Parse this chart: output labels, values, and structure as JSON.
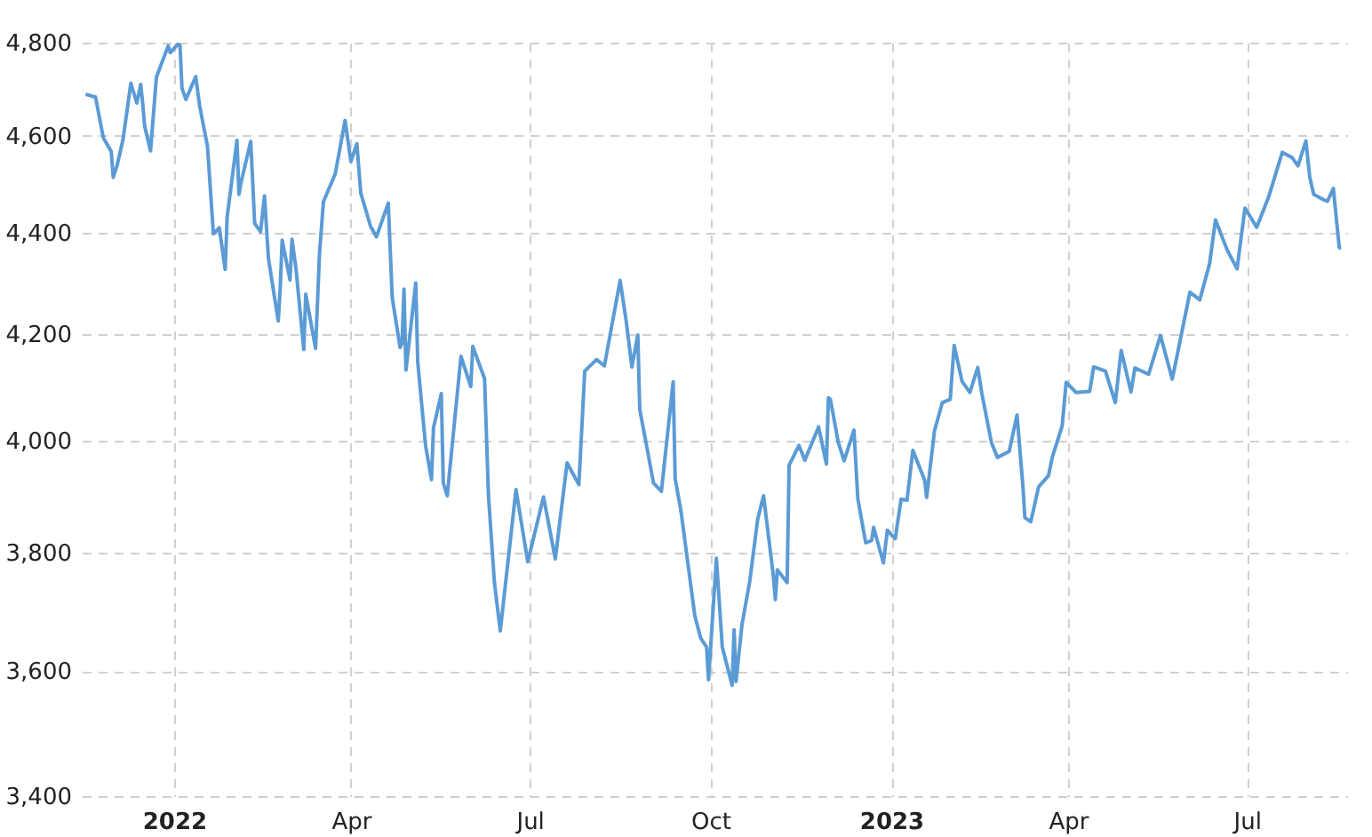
{
  "chart_data": {
    "type": "line",
    "log": true,
    "grid": true,
    "marker": "none",
    "line_style": "solid",
    "xlim": [
      "2021-11-15",
      "2023-08-21"
    ],
    "xticks": [
      {
        "value": "2022-01-01",
        "label": "2022"
      },
      {
        "value": "2022-04-01",
        "label": "Apr"
      },
      {
        "value": "2022-07-01",
        "label": "Jul"
      },
      {
        "value": "2022-10-01",
        "label": "Oct"
      },
      {
        "value": "2023-01-01",
        "label": "2023"
      },
      {
        "value": "2023-04-01",
        "label": "Apr"
      },
      {
        "value": "2023-07-01",
        "label": "Jul"
      }
    ],
    "ylim": [
      3400,
      4800
    ],
    "yticks": [
      {
        "value": 3400,
        "label": "3,400"
      },
      {
        "value": 3600,
        "label": "3,600"
      },
      {
        "value": 3800,
        "label": "3,800"
      },
      {
        "value": 4000,
        "label": "4,000"
      },
      {
        "value": 4200,
        "label": "4,200"
      },
      {
        "value": 4400,
        "label": "4,400"
      },
      {
        "value": 4600,
        "label": "4,600"
      },
      {
        "value": 4800,
        "label": "4,800"
      }
    ],
    "x": [
      "2021-11-17",
      "2021-11-22",
      "2021-11-26",
      "2021-11-30",
      "2021-12-01",
      "2021-12-03",
      "2021-12-06",
      "2021-12-10",
      "2021-12-13",
      "2021-12-15",
      "2021-12-16",
      "2021-12-17",
      "2021-12-20",
      "2021-12-23",
      "2021-12-29",
      "2021-12-30",
      "2022-01-03",
      "2022-01-04",
      "2022-01-05",
      "2022-01-07",
      "2022-01-12",
      "2022-01-14",
      "2022-01-18",
      "2022-01-21",
      "2022-01-24",
      "2022-01-27",
      "2022-01-28",
      "2022-02-02",
      "2022-02-03",
      "2022-02-04",
      "2022-02-09",
      "2022-02-10",
      "2022-02-11",
      "2022-02-14",
      "2022-02-16",
      "2022-02-18",
      "2022-02-23",
      "2022-02-24",
      "2022-02-25",
      "2022-03-01",
      "2022-03-02",
      "2022-03-04",
      "2022-03-08",
      "2022-03-09",
      "2022-03-14",
      "2022-03-16",
      "2022-03-18",
      "2022-03-24",
      "2022-03-29",
      "2022-04-01",
      "2022-04-04",
      "2022-04-06",
      "2022-04-11",
      "2022-04-14",
      "2022-04-20",
      "2022-04-22",
      "2022-04-26",
      "2022-04-27",
      "2022-04-28",
      "2022-04-29",
      "2022-05-04",
      "2022-05-05",
      "2022-05-09",
      "2022-05-12",
      "2022-05-13",
      "2022-05-17",
      "2022-05-18",
      "2022-05-20",
      "2022-05-27",
      "2022-06-01",
      "2022-06-02",
      "2022-06-08",
      "2022-06-10",
      "2022-06-13",
      "2022-06-16",
      "2022-06-24",
      "2022-06-30",
      "2022-07-08",
      "2022-07-14",
      "2022-07-20",
      "2022-07-26",
      "2022-07-29",
      "2022-08-04",
      "2022-08-08",
      "2022-08-16",
      "2022-08-19",
      "2022-08-22",
      "2022-08-25",
      "2022-08-26",
      "2022-09-02",
      "2022-09-06",
      "2022-09-12",
      "2022-09-13",
      "2022-09-16",
      "2022-09-23",
      "2022-09-26",
      "2022-09-29",
      "2022-09-30",
      "2022-10-04",
      "2022-10-07",
      "2022-10-12",
      "2022-10-13",
      "2022-10-14",
      "2022-10-17",
      "2022-10-21",
      "2022-10-25",
      "2022-10-28",
      "2022-11-02",
      "2022-11-03",
      "2022-11-04",
      "2022-11-09",
      "2022-11-10",
      "2022-11-15",
      "2022-11-18",
      "2022-11-25",
      "2022-11-29",
      "2022-11-30",
      "2022-12-01",
      "2022-12-05",
      "2022-12-08",
      "2022-12-13",
      "2022-12-15",
      "2022-12-19",
      "2022-12-22",
      "2022-12-23",
      "2022-12-28",
      "2022-12-30",
      "2023-01-03",
      "2023-01-06",
      "2023-01-09",
      "2023-01-12",
      "2023-01-18",
      "2023-01-19",
      "2023-01-23",
      "2023-01-27",
      "2023-01-31",
      "2023-02-02",
      "2023-02-06",
      "2023-02-10",
      "2023-02-14",
      "2023-02-16",
      "2023-02-21",
      "2023-02-24",
      "2023-03-02",
      "2023-03-06",
      "2023-03-09",
      "2023-03-10",
      "2023-03-13",
      "2023-03-17",
      "2023-03-22",
      "2023-03-24",
      "2023-03-29",
      "2023-03-31",
      "2023-04-05",
      "2023-04-12",
      "2023-04-14",
      "2023-04-20",
      "2023-04-25",
      "2023-04-28",
      "2023-05-03",
      "2023-05-05",
      "2023-05-12",
      "2023-05-18",
      "2023-05-24",
      "2023-05-26",
      "2023-06-02",
      "2023-06-07",
      "2023-06-12",
      "2023-06-15",
      "2023-06-21",
      "2023-06-26",
      "2023-06-30",
      "2023-07-06",
      "2023-07-12",
      "2023-07-19",
      "2023-07-24",
      "2023-07-27",
      "2023-07-31",
      "2023-08-02",
      "2023-08-04",
      "2023-08-09",
      "2023-08-11",
      "2023-08-14",
      "2023-08-17",
      "2023-08-18"
    ],
    "series": [
      {
        "color": "#5b9bd5",
        "values": [
          4688,
          4682,
          4595,
          4567,
          4513,
          4538,
          4592,
          4712,
          4669,
          4709,
          4669,
          4620,
          4568,
          4725,
          4793,
          4778,
          4797,
          4794,
          4701,
          4677,
          4726,
          4663,
          4577,
          4398,
          4410,
          4327,
          4432,
          4590,
          4478,
          4501,
          4588,
          4504,
          4419,
          4402,
          4475,
          4349,
          4226,
          4289,
          4385,
          4306,
          4387,
          4329,
          4171,
          4278,
          4173,
          4358,
          4463,
          4520,
          4632,
          4546,
          4583,
          4481,
          4413,
          4392,
          4460,
          4272,
          4175,
          4183,
          4288,
          4132,
          4300,
          4147,
          3991,
          3930,
          4024,
          4088,
          3924,
          3901,
          4158,
          4101,
          4177,
          4116,
          3901,
          3750,
          3667,
          3912,
          3785,
          3899,
          3790,
          3960,
          3921,
          4130,
          4152,
          4140,
          4305,
          4228,
          4138,
          4199,
          4058,
          3924,
          3909,
          4110,
          3932,
          3873,
          3693,
          3655,
          3640,
          3586,
          3791,
          3640,
          3577,
          3669,
          3583,
          3677,
          3752,
          3859,
          3901,
          3760,
          3720,
          3771,
          3749,
          3956,
          3992,
          3965,
          4026,
          3958,
          4080,
          4077,
          3998,
          3964,
          4020,
          3895,
          3818,
          3822,
          3845,
          3783,
          3840,
          3825,
          3895,
          3893,
          3983,
          3929,
          3898,
          4019,
          4071,
          4077,
          4179,
          4111,
          4090,
          4137,
          4090,
          3997,
          3970,
          3981,
          4048,
          3918,
          3862,
          3855,
          3917,
          3937,
          3971,
          4028,
          4109,
          4090,
          4092,
          4138,
          4130,
          4071,
          4169,
          4091,
          4136,
          4124,
          4198,
          4115,
          4151,
          4282,
          4267,
          4338,
          4426,
          4365,
          4328,
          4450,
          4411,
          4472,
          4565,
          4554,
          4537,
          4589,
          4513,
          4478,
          4467,
          4464,
          4490,
          4370,
          4370
        ]
      }
    ]
  }
}
